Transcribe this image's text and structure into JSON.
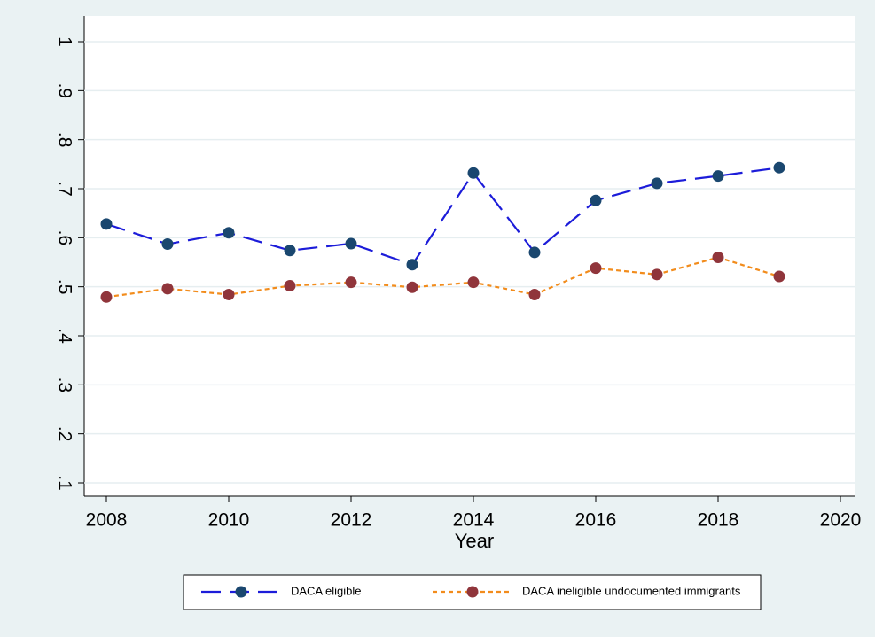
{
  "chart_data": {
    "type": "line",
    "xlabel": "Year",
    "x": [
      2008,
      2009,
      2010,
      2011,
      2012,
      2013,
      2014,
      2015,
      2016,
      2017,
      2018,
      2019
    ],
    "series": [
      {
        "name": "DACA eligible",
        "color": "#1c1cd9",
        "marker_color": "#1a476f",
        "dash": "22,10",
        "values": [
          0.628,
          0.587,
          0.61,
          0.574,
          0.588,
          0.545,
          0.732,
          0.57,
          0.676,
          0.711,
          0.726,
          0.743
        ]
      },
      {
        "name": "DACA ineligible undocumented immigrants",
        "color": "#f28c1c",
        "marker_color": "#90353b",
        "dash": "5,4",
        "values": [
          0.479,
          0.496,
          0.484,
          0.502,
          0.509,
          0.499,
          0.509,
          0.484,
          0.538,
          0.525,
          0.56,
          0.521
        ]
      }
    ],
    "xlim": [
      2008,
      2020
    ],
    "xticks": [
      2008,
      2010,
      2012,
      2014,
      2016,
      2018,
      2020
    ],
    "ylim": [
      0.1,
      1
    ],
    "yticks": [
      {
        "value": 0.1,
        "label": ".1"
      },
      {
        "value": 0.2,
        "label": ".2"
      },
      {
        "value": 0.3,
        "label": ".3"
      },
      {
        "value": 0.4,
        "label": ".4"
      },
      {
        "value": 0.5,
        "label": ".5"
      },
      {
        "value": 0.6,
        "label": ".6"
      },
      {
        "value": 0.7,
        "label": ".7"
      },
      {
        "value": 0.8,
        "label": ".8"
      },
      {
        "value": 0.9,
        "label": ".9"
      },
      1
    ],
    "grid": true,
    "legend": "bottom"
  }
}
